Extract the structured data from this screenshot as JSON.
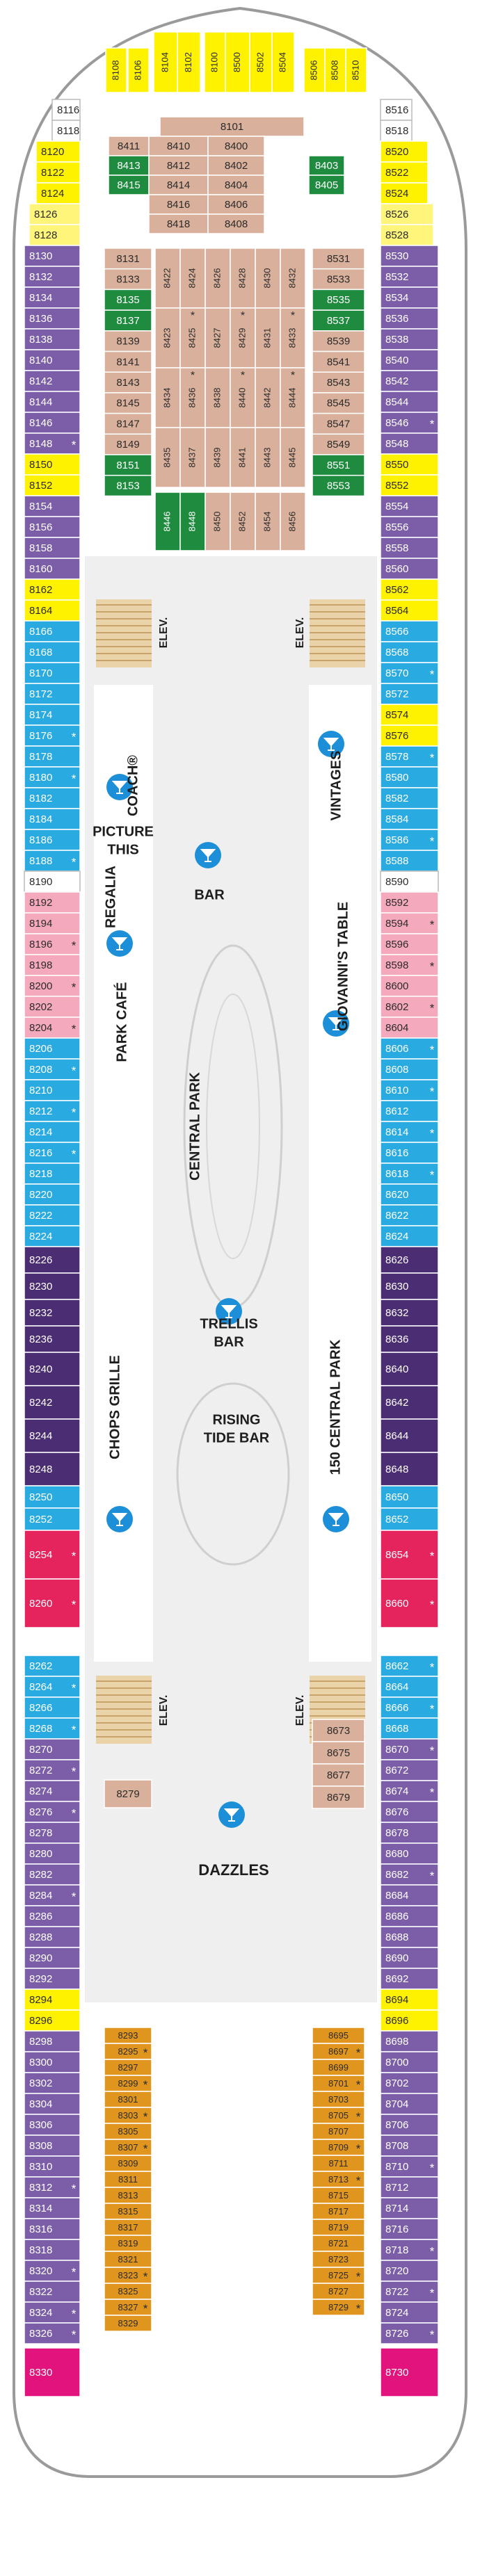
{
  "cabins": {
    "top": [
      {
        "color": "#fff200",
        "cabins": [
          "8108",
          "8106",
          "8104",
          "8102",
          "8100",
          "8500",
          "8502",
          "8504",
          "8506",
          "8508",
          "8510"
        ]
      }
    ],
    "left": [
      {
        "color": "#ffffff",
        "cabins": [
          "8116",
          "8118"
        ]
      },
      {
        "color": "#fff200",
        "cabins": [
          "8120",
          "8122",
          "8124"
        ]
      },
      {
        "color": "#fff57a",
        "cabins": [
          "8126",
          "8128"
        ]
      },
      {
        "color": "#7b5ea7",
        "cabins": [
          "8130",
          "8132",
          "8134",
          "8136",
          "8138",
          "8140",
          "8142",
          "8144",
          "8146",
          {
            "label": "8148",
            "mark": "*"
          }
        ]
      },
      {
        "color": "#fff200",
        "cabins": [
          "8150",
          "8152"
        ]
      },
      {
        "color": "#7b5ea7",
        "cabins": [
          "8154",
          "8156",
          "8158",
          "8160"
        ]
      },
      {
        "color": "#fff200",
        "cabins": [
          "8162",
          "8164"
        ]
      },
      {
        "color": "#29abe2",
        "cabins": [
          "8166",
          "8168",
          "8170",
          "8172",
          "8174",
          {
            "label": "8176",
            "mark": "*"
          },
          "8178",
          {
            "label": "8180",
            "mark": "*"
          },
          "8182",
          "8184",
          "8186",
          {
            "label": "8188",
            "mark": "*"
          }
        ]
      },
      {
        "color": "#ffffff",
        "cabins": [
          "8190"
        ]
      },
      {
        "color": "#f5a9bc",
        "cabins": [
          "8192",
          "8194",
          {
            "label": "8196",
            "mark": "*"
          },
          "8198",
          {
            "label": "8200",
            "mark": "*"
          },
          "8202",
          {
            "label": "8204",
            "mark": "*"
          }
        ]
      },
      {
        "color": "#29abe2",
        "cabins": [
          "8206",
          {
            "label": "8208",
            "mark": "*"
          },
          "8210",
          {
            "label": "8212",
            "mark": "*"
          },
          "8214",
          {
            "label": "8216",
            "mark": "*"
          },
          "8218",
          "8220",
          "8222",
          "8224"
        ]
      },
      {
        "color": "#4b2d73",
        "cabins": [
          "8226",
          "8230",
          "8232",
          "8236"
        ]
      },
      {
        "color": "#4b2d73",
        "cabins": [
          "8240",
          "8242",
          "8244",
          "8248"
        ]
      },
      {
        "color": "#29abe2",
        "cabins": [
          "8250",
          "8252"
        ]
      },
      {
        "color": "#e5245e",
        "cabins": [
          {
            "label": "8254",
            "mark": "*"
          },
          {
            "label": "8260",
            "mark": "*"
          }
        ]
      },
      {
        "color": "#29abe2",
        "cabins": [
          "8262",
          {
            "label": "8264",
            "mark": "*"
          },
          "8266",
          {
            "label": "8268",
            "mark": "*"
          }
        ]
      },
      {
        "color": "#7b5ea7",
        "cabins": [
          "8270",
          {
            "label": "8272",
            "mark": "*"
          },
          "8274",
          {
            "label": "8276",
            "mark": "*"
          },
          "8278",
          "8280",
          "8282",
          {
            "label": "8284",
            "mark": "*"
          },
          "8286",
          "8288",
          "8290",
          "8292"
        ]
      },
      {
        "color": "#fff200",
        "cabins": [
          "8294",
          "8296"
        ]
      },
      {
        "color": "#7b5ea7",
        "cabins": [
          "8298",
          "8300",
          "8302",
          "8304",
          "8306",
          "8308",
          "8310",
          {
            "label": "8312",
            "mark": "*"
          },
          "8314",
          "8316",
          "8318",
          {
            "label": "8320",
            "mark": "*"
          },
          "8322",
          {
            "label": "8324",
            "mark": "*"
          },
          {
            "label": "8326",
            "mark": "*"
          }
        ]
      },
      {
        "color": "#e2137d",
        "cabins": [
          "8330"
        ]
      }
    ],
    "right": [
      {
        "color": "#ffffff",
        "cabins": [
          "8516",
          "8518"
        ]
      },
      {
        "color": "#fff200",
        "cabins": [
          "8520",
          "8522",
          "8524"
        ]
      },
      {
        "color": "#fff57a",
        "cabins": [
          "8526",
          "8528"
        ]
      },
      {
        "color": "#7b5ea7",
        "cabins": [
          "8530",
          "8532",
          "8534",
          "8536",
          "8538",
          "8540",
          "8542",
          "8544",
          {
            "label": "8546",
            "mark": "*"
          },
          "8548"
        ]
      },
      {
        "color": "#fff200",
        "cabins": [
          "8550",
          "8552"
        ]
      },
      {
        "color": "#7b5ea7",
        "cabins": [
          "8554",
          "8556",
          "8558",
          "8560"
        ]
      },
      {
        "color": "#fff200",
        "cabins": [
          "8562",
          "8564"
        ]
      },
      {
        "color": "#29abe2",
        "cabins": [
          "8566",
          "8568",
          {
            "label": "8570",
            "mark": "*"
          },
          "8572"
        ]
      },
      {
        "color": "#fff200",
        "cabins": [
          "8574",
          "8576"
        ]
      },
      {
        "color": "#29abe2",
        "cabins": [
          {
            "label": "8578",
            "mark": "*"
          },
          "8580",
          "8582",
          "8584",
          {
            "label": "8586",
            "mark": "*"
          },
          "8588"
        ]
      },
      {
        "color": "#ffffff",
        "cabins": [
          "8590"
        ]
      },
      {
        "color": "#f5a9bc",
        "cabins": [
          "8592",
          {
            "label": "8594",
            "mark": "*"
          },
          "8596",
          {
            "label": "8598",
            "mark": "*"
          },
          "8600",
          {
            "label": "8602",
            "mark": "*"
          },
          "8604"
        ]
      },
      {
        "color": "#29abe2",
        "cabins": [
          {
            "label": "8606",
            "mark": "*"
          },
          "8608",
          {
            "label": "8610",
            "mark": "*"
          },
          "8612",
          {
            "label": "8614",
            "mark": "*"
          },
          "8616",
          {
            "label": "8618",
            "mark": "*"
          },
          "8620",
          "8622",
          "8624"
        ]
      },
      {
        "color": "#4b2d73",
        "cabins": [
          "8626",
          "8630",
          "8632",
          "8636"
        ]
      },
      {
        "color": "#4b2d73",
        "cabins": [
          "8640",
          "8642",
          "8644",
          "8648"
        ]
      },
      {
        "color": "#29abe2",
        "cabins": [
          "8650",
          "8652"
        ]
      },
      {
        "color": "#e5245e",
        "cabins": [
          {
            "label": "8654",
            "mark": "*"
          },
          {
            "label": "8660",
            "mark": "*"
          }
        ]
      },
      {
        "color": "#29abe2",
        "cabins": [
          {
            "label": "8662",
            "mark": "*"
          },
          "8664",
          {
            "label": "8666",
            "mark": "*"
          },
          "8668"
        ]
      },
      {
        "color": "#7b5ea7",
        "cabins": [
          {
            "label": "8670",
            "mark": "*"
          },
          "8672",
          {
            "label": "8674",
            "mark": "*"
          },
          "8676",
          "8678",
          "8680",
          {
            "label": "8682",
            "mark": "*"
          },
          "8684",
          "8686",
          "8688",
          "8690",
          "8692"
        ]
      },
      {
        "color": "#fff200",
        "cabins": [
          "8694",
          "8696"
        ]
      },
      {
        "color": "#7b5ea7",
        "cabins": [
          "8698",
          "8700",
          "8702",
          "8704",
          "8706",
          "8708",
          {
            "label": "8710",
            "mark": "*"
          },
          "8712",
          "8714",
          "8716",
          {
            "label": "8718",
            "mark": "*"
          },
          "8720",
          {
            "label": "8722",
            "mark": "*"
          },
          "8724",
          {
            "label": "8726",
            "mark": "*"
          }
        ]
      },
      {
        "color": "#e2137d",
        "cabins": [
          "8730"
        ]
      }
    ],
    "fwd_a": [
      {
        "color": "#d9b09b",
        "cabins": [
          "8101",
          "8411"
        ]
      },
      {
        "color": "#1f8b3f",
        "cabins": [
          "8413",
          "8415"
        ]
      },
      {
        "color": "#d9b09b",
        "cabins": [
          "8410",
          "8412",
          "8414",
          "8416",
          "8418",
          "8400",
          "8402",
          "8404",
          "8406",
          "8408"
        ]
      },
      {
        "color": "#1f8b3f",
        "cabins": [
          "8403",
          "8405"
        ]
      }
    ],
    "fwd_left": [
      {
        "color": "#d9b09b",
        "cabins": [
          "8131",
          "8133"
        ]
      },
      {
        "color": "#1f8b3f",
        "cabins": [
          "8135",
          "8137"
        ]
      },
      {
        "color": "#d9b09b",
        "cabins": [
          "8139",
          "8141",
          "8143",
          "8145",
          "8147",
          "8149"
        ]
      },
      {
        "color": "#1f8b3f",
        "cabins": [
          "8151",
          "8153"
        ]
      }
    ],
    "fwd_right": [
      {
        "color": "#d9b09b",
        "cabins": [
          "8531",
          "8533"
        ]
      },
      {
        "color": "#1f8b3f",
        "cabins": [
          "8535",
          "8537"
        ]
      },
      {
        "color": "#d9b09b",
        "cabins": [
          "8539",
          "8541",
          "8543",
          "8545",
          "8547",
          "8549"
        ]
      },
      {
        "color": "#1f8b3f",
        "cabins": [
          "8551",
          "8553"
        ]
      }
    ],
    "fwd_grid": [
      {
        "color": "#d9b09b",
        "cabins": [
          "8422",
          "8424",
          "8426",
          "8428",
          "8430",
          "8432",
          "8423",
          {
            "label": "8425",
            "mark": "*"
          },
          "8427",
          {
            "label": "8429",
            "mark": "*"
          },
          "8431",
          {
            "label": "8433",
            "mark": "*"
          },
          "8434",
          {
            "label": "8436",
            "mark": "*"
          },
          "8438",
          {
            "label": "8440",
            "mark": "*"
          },
          "8442",
          {
            "label": "8444",
            "mark": "*"
          },
          "8435",
          "8437",
          "8439",
          "8441",
          "8443",
          "8445"
        ]
      },
      {
        "color": "#1f8b3f",
        "cabins": [
          "8446",
          "8448"
        ]
      },
      {
        "color": "#d9b09b",
        "cabins": [
          "8450",
          "8452",
          "8454",
          "8456"
        ]
      }
    ],
    "mid_left": [
      {
        "color": "#d9b09b",
        "cabins": [
          "8279"
        ]
      }
    ],
    "mid_right": [
      {
        "color": "#d9b09b",
        "cabins": [
          "8673",
          "8675",
          "8677",
          "8679"
        ]
      }
    ],
    "aft_left": [
      {
        "color": "#e0951f",
        "cabins": [
          "8293",
          {
            "label": "8295",
            "mark": "*"
          },
          "8297",
          {
            "label": "8299",
            "mark": "*"
          },
          "8301",
          {
            "label": "8303",
            "mark": "*"
          },
          "8305",
          {
            "label": "8307",
            "mark": "*"
          },
          "8309",
          "8311",
          "8313",
          "8315",
          "8317",
          "8319",
          "8321",
          {
            "label": "8323",
            "mark": "*"
          },
          "8325",
          {
            "label": "8327",
            "mark": "*"
          },
          "8329"
        ]
      }
    ],
    "aft_right": [
      {
        "color": "#e0951f",
        "cabins": [
          "8695",
          {
            "label": "8697",
            "mark": "*"
          },
          "8699",
          {
            "label": "8701",
            "mark": "*"
          },
          "8703",
          {
            "label": "8705",
            "mark": "*"
          },
          "8707",
          {
            "label": "8709",
            "mark": "*"
          },
          "8711",
          {
            "label": "8713",
            "mark": "*"
          },
          "8715",
          "8717",
          "8719",
          "8721",
          "8723",
          {
            "label": "8725",
            "mark": "*"
          },
          "8727",
          {
            "label": "8729",
            "mark": "*"
          }
        ]
      }
    ]
  },
  "venues": [
    {
      "lines": [
        "ELEV."
      ]
    },
    {
      "lines": [
        "ELEV."
      ]
    },
    {
      "lines": [
        "ELEV."
      ]
    },
    {
      "lines": [
        "ELEV."
      ]
    },
    {
      "lines": [
        "REGALIA"
      ]
    },
    {
      "lines": [
        "COACH®"
      ]
    },
    {
      "lines": [
        "PICTURE",
        "THIS"
      ]
    },
    {
      "lines": [
        "BAR"
      ]
    },
    {
      "lines": [
        "VINTAGES"
      ]
    },
    {
      "lines": [
        "PARK CAFÉ"
      ]
    },
    {
      "lines": [
        "GIOVANNI'S TABLE"
      ]
    },
    {
      "lines": [
        "CENTRAL PARK"
      ]
    },
    {
      "lines": [
        "TRELLIS",
        "BAR"
      ]
    },
    {
      "lines": [
        "RISING",
        "TIDE BAR"
      ]
    },
    {
      "lines": [
        "CHOPS GRILLE"
      ]
    },
    {
      "lines": [
        "150 CENTRAL PARK"
      ]
    },
    {
      "lines": [
        "DAZZLES"
      ]
    }
  ]
}
